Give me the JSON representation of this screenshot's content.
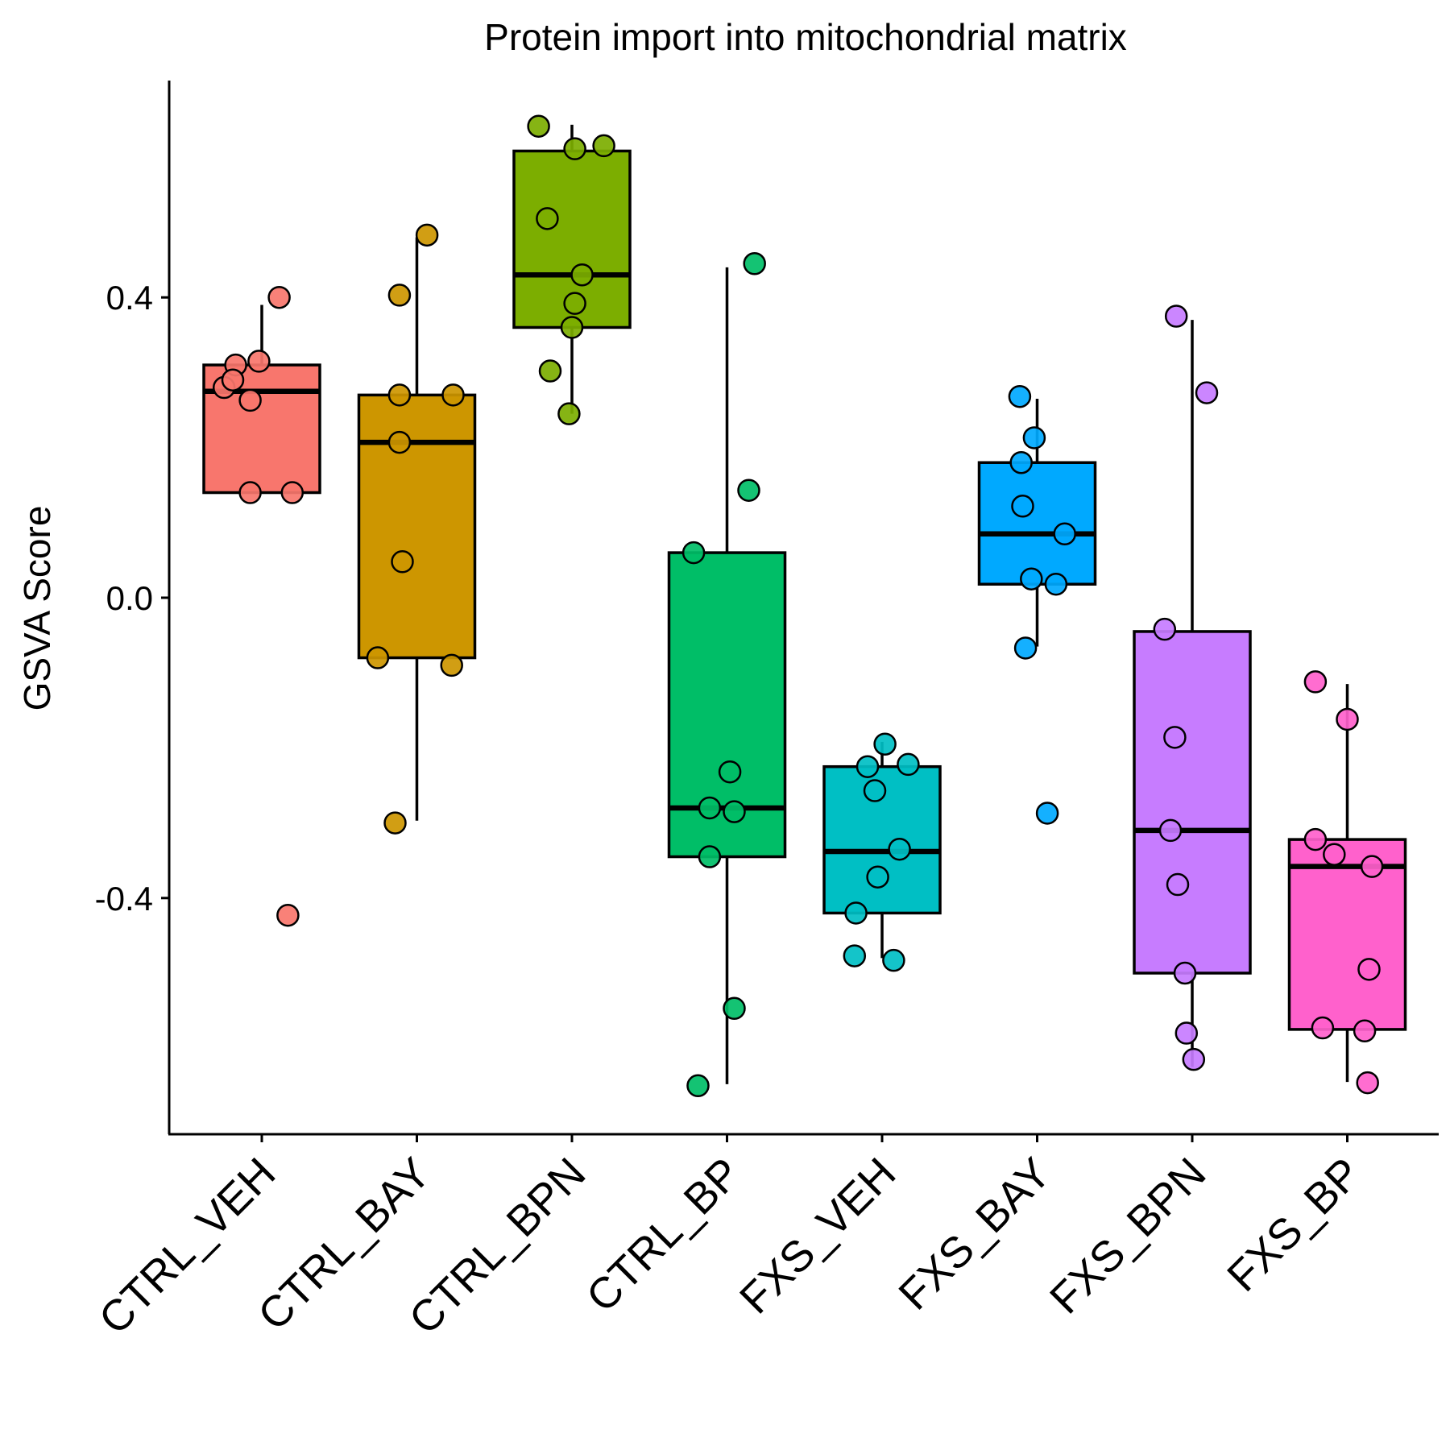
{
  "chart_data": {
    "type": "box",
    "title": "Protein import into mitochondrial matrix",
    "ylabel": "GSVA Score",
    "xlabel": "",
    "ylim": [
      -0.71,
      0.69
    ],
    "yticks": [
      {
        "value": 0.4,
        "label": "0.4"
      },
      {
        "value": 0.0,
        "label": "0.0"
      },
      {
        "value": -0.4,
        "label": "-0.4"
      }
    ],
    "grid": false,
    "legend": "none",
    "groups": [
      {
        "name": "CTRL_VEH",
        "color": "#F8766D",
        "whisker_low": 0.14,
        "q1": 0.14,
        "median": 0.275,
        "q3": 0.31,
        "whisker_high": 0.39,
        "points": [
          {
            "x": 0.12,
            "y": 0.4
          },
          {
            "x": -0.18,
            "y": 0.31
          },
          {
            "x": -0.02,
            "y": 0.315
          },
          {
            "x": -0.26,
            "y": 0.28
          },
          {
            "x": -0.2,
            "y": 0.29
          },
          {
            "x": -0.08,
            "y": 0.263
          },
          {
            "x": -0.08,
            "y": 0.14
          },
          {
            "x": 0.21,
            "y": 0.14
          },
          {
            "x": 0.18,
            "y": -0.423
          }
        ]
      },
      {
        "name": "CTRL_BAY",
        "color": "#CD9600",
        "whisker_low": -0.297,
        "q1": -0.08,
        "median": 0.207,
        "q3": 0.27,
        "whisker_high": 0.48,
        "points": [
          {
            "x": 0.07,
            "y": 0.483
          },
          {
            "x": -0.12,
            "y": 0.403
          },
          {
            "x": -0.12,
            "y": 0.27
          },
          {
            "x": 0.25,
            "y": 0.27
          },
          {
            "x": -0.12,
            "y": 0.207
          },
          {
            "x": -0.1,
            "y": 0.048
          },
          {
            "x": -0.27,
            "y": -0.08
          },
          {
            "x": 0.24,
            "y": -0.09
          },
          {
            "x": -0.15,
            "y": -0.3
          }
        ]
      },
      {
        "name": "CTRL_BPN",
        "color": "#7CAE00",
        "whisker_low": 0.245,
        "q1": 0.36,
        "median": 0.43,
        "q3": 0.595,
        "whisker_high": 0.63,
        "points": [
          {
            "x": -0.23,
            "y": 0.628
          },
          {
            "x": 0.22,
            "y": 0.602
          },
          {
            "x": 0.02,
            "y": 0.598
          },
          {
            "x": -0.17,
            "y": 0.505
          },
          {
            "x": 0.07,
            "y": 0.43
          },
          {
            "x": 0.02,
            "y": 0.392
          },
          {
            "x": 0.0,
            "y": 0.36
          },
          {
            "x": -0.15,
            "y": 0.302
          },
          {
            "x": -0.02,
            "y": 0.245
          }
        ]
      },
      {
        "name": "CTRL_BP",
        "color": "#00BE67",
        "whisker_low": -0.648,
        "q1": -0.345,
        "median": -0.28,
        "q3": 0.06,
        "whisker_high": 0.44,
        "points": [
          {
            "x": 0.19,
            "y": 0.445
          },
          {
            "x": 0.15,
            "y": 0.143
          },
          {
            "x": -0.23,
            "y": 0.06
          },
          {
            "x": 0.02,
            "y": -0.232
          },
          {
            "x": -0.12,
            "y": -0.28
          },
          {
            "x": 0.05,
            "y": -0.285
          },
          {
            "x": -0.12,
            "y": -0.345
          },
          {
            "x": 0.05,
            "y": -0.547
          },
          {
            "x": -0.2,
            "y": -0.65
          }
        ]
      },
      {
        "name": "FXS_VEH",
        "color": "#00BFC4",
        "whisker_low": -0.48,
        "q1": -0.42,
        "median": -0.338,
        "q3": -0.225,
        "whisker_high": -0.192,
        "points": [
          {
            "x": 0.02,
            "y": -0.195
          },
          {
            "x": -0.1,
            "y": -0.225
          },
          {
            "x": 0.18,
            "y": -0.222
          },
          {
            "x": -0.05,
            "y": -0.257
          },
          {
            "x": 0.12,
            "y": -0.335
          },
          {
            "x": -0.03,
            "y": -0.372
          },
          {
            "x": -0.18,
            "y": -0.42
          },
          {
            "x": -0.19,
            "y": -0.477
          },
          {
            "x": 0.08,
            "y": -0.483
          }
        ]
      },
      {
        "name": "FXS_BAY",
        "color": "#00A9FF",
        "whisker_low": -0.065,
        "q1": 0.018,
        "median": 0.085,
        "q3": 0.18,
        "whisker_high": 0.265,
        "points": [
          {
            "x": -0.12,
            "y": 0.268
          },
          {
            "x": -0.02,
            "y": 0.213
          },
          {
            "x": -0.11,
            "y": 0.18
          },
          {
            "x": -0.1,
            "y": 0.122
          },
          {
            "x": 0.19,
            "y": 0.085
          },
          {
            "x": -0.04,
            "y": 0.025
          },
          {
            "x": 0.13,
            "y": 0.018
          },
          {
            "x": -0.08,
            "y": -0.067
          },
          {
            "x": 0.07,
            "y": -0.287
          }
        ]
      },
      {
        "name": "FXS_BPN",
        "color": "#C77CFF",
        "whisker_low": -0.625,
        "q1": -0.5,
        "median": -0.31,
        "q3": -0.045,
        "whisker_high": 0.37,
        "points": [
          {
            "x": -0.11,
            "y": 0.375
          },
          {
            "x": 0.1,
            "y": 0.273
          },
          {
            "x": -0.19,
            "y": -0.042
          },
          {
            "x": -0.12,
            "y": -0.186
          },
          {
            "x": -0.15,
            "y": -0.31
          },
          {
            "x": -0.1,
            "y": -0.382
          },
          {
            "x": -0.05,
            "y": -0.5
          },
          {
            "x": -0.04,
            "y": -0.58
          },
          {
            "x": 0.01,
            "y": -0.615
          }
        ]
      },
      {
        "name": "FXS_BP",
        "color": "#FF61CC",
        "whisker_low": -0.645,
        "q1": -0.575,
        "median": -0.358,
        "q3": -0.322,
        "whisker_high": -0.115,
        "points": [
          {
            "x": -0.22,
            "y": -0.112
          },
          {
            "x": 0.0,
            "y": -0.162
          },
          {
            "x": -0.22,
            "y": -0.322
          },
          {
            "x": -0.09,
            "y": -0.342
          },
          {
            "x": 0.17,
            "y": -0.358
          },
          {
            "x": 0.15,
            "y": -0.495
          },
          {
            "x": -0.17,
            "y": -0.573
          },
          {
            "x": 0.12,
            "y": -0.577
          },
          {
            "x": 0.14,
            "y": -0.646
          }
        ]
      }
    ]
  }
}
